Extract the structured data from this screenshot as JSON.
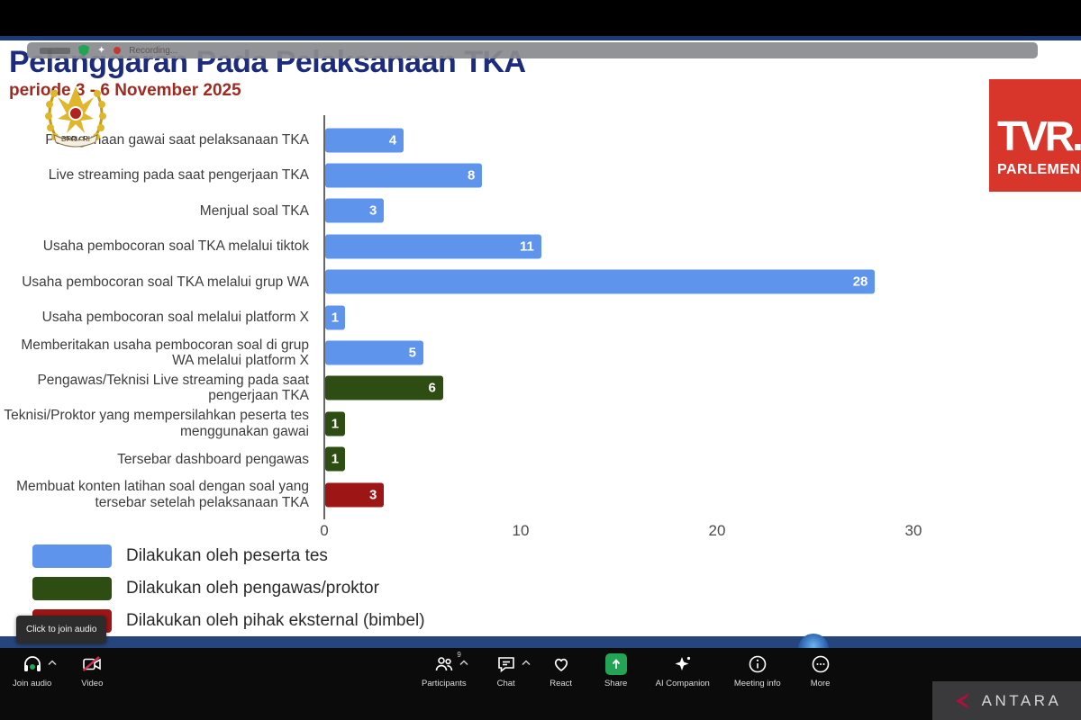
{
  "meeting_bar": {
    "recording_label": "Recording..."
  },
  "header": {
    "title": "Pelanggaran Pada Pelaksanaan TKA",
    "subtitle": "periode 3 - 6 November 2025"
  },
  "logos": {
    "dpr_text": "DPR - RI",
    "tvr_line1": "TVR.",
    "tvr_line2": "PARLEMEN",
    "antara_text": "ANTARA"
  },
  "chart_data": {
    "type": "bar",
    "orientation": "horizontal",
    "title": "Pelanggaran Pada Pelaksanaan TKA",
    "subtitle": "periode 3 - 6 November 2025",
    "categories": [
      "Penggunaan gawai saat pelaksanaan TKA",
      "Live streaming pada saat pengerjaan TKA",
      "Menjual soal TKA",
      "Usaha pembocoran soal TKA melalui tiktok",
      "Usaha pembocoran soal TKA melalui grup WA",
      "Usaha pembocoran soal melalui platform X",
      "Memberitakan usaha pembocoran soal di grup WA melalui platform X",
      "Pengawas/Teknisi Live streaming pada saat pengerjaan TKA",
      "Teknisi/Proktor yang mempersilahkan peserta tes menggunakan gawai",
      "Tersebar dashboard pengawas",
      "Membuat konten latihan soal dengan soal yang tersebar setelah pelaksanaan TKA"
    ],
    "values": [
      4,
      8,
      3,
      11,
      28,
      1,
      5,
      6,
      1,
      1,
      3
    ],
    "bar_colors": [
      "#5e94ec",
      "#5e94ec",
      "#5e94ec",
      "#5e94ec",
      "#5e94ec",
      "#5e94ec",
      "#5e94ec",
      "#2e4d13",
      "#2e4d13",
      "#2e4d13",
      "#9e1515"
    ],
    "bar_groups": [
      "Dilakukan oleh peserta tes",
      "Dilakukan oleh peserta tes",
      "Dilakukan oleh peserta tes",
      "Dilakukan oleh peserta tes",
      "Dilakukan oleh peserta tes",
      "Dilakukan oleh peserta tes",
      "Dilakukan oleh peserta tes",
      "Dilakukan oleh pengawas/proktor",
      "Dilakukan oleh pengawas/proktor",
      "Dilakukan oleh pengawas/proktor",
      "Dilakukan oleh pihak eksternal (bimbel)"
    ],
    "x_ticks": [
      0,
      10,
      20,
      30
    ],
    "xlim": [
      0,
      32
    ],
    "grid": false,
    "legend_position": "bottom",
    "legend": [
      {
        "label": "Dilakukan oleh peserta tes",
        "color": "#5e94ec"
      },
      {
        "label": "Dilakukan oleh pengawas/proktor",
        "color": "#2e4d13"
      },
      {
        "label": "Dilakukan oleh pihak eksternal (bimbel)",
        "color": "#9e1515"
      }
    ]
  },
  "tooltip": {
    "join_audio": "Click to join audio"
  },
  "toolbar": {
    "join_audio": "Join audio",
    "video": "Video",
    "participants": "Participants",
    "participants_count": "9",
    "chat": "Chat",
    "react": "React",
    "share": "Share",
    "ai_companion": "AI Companion",
    "meeting_info": "Meeting info",
    "more": "More"
  }
}
